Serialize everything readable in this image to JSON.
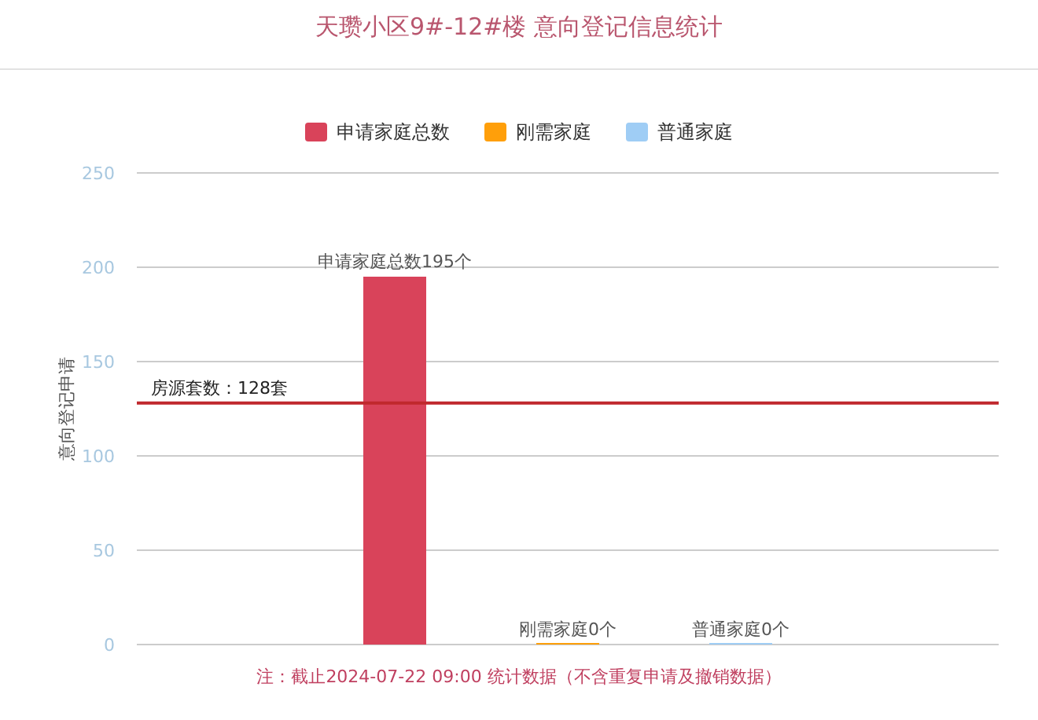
{
  "chart_data": {
    "type": "bar",
    "title": "天瓒小区9#-12#楼 意向登记信息统计",
    "ylabel": "意向登记申请",
    "categories": [
      null
    ],
    "series": [
      {
        "name": "申请家庭总数",
        "color": "#d9435a",
        "values": [
          195
        ],
        "value_labels": [
          "申请家庭总数195个"
        ]
      },
      {
        "name": "刚需家庭",
        "color": "#ff9f0a",
        "values": [
          0
        ],
        "value_labels": [
          "刚需家庭0个"
        ]
      },
      {
        "name": "普通家庭",
        "color": "#9fcdf5",
        "values": [
          0
        ],
        "value_labels": [
          "普通家庭0个"
        ]
      }
    ],
    "ylim": [
      0,
      250
    ],
    "yticks": [
      0,
      50,
      100,
      150,
      200,
      250
    ],
    "grid": "y",
    "legend": "top",
    "ref_lines": [
      {
        "axis": "y",
        "value": 128,
        "label": "房源套数：128套",
        "color": "#c0282d"
      }
    ],
    "annotations": [
      "注：截止2024-07-22 09:00 统计数据（不含重复申请及撤销数据）"
    ]
  }
}
